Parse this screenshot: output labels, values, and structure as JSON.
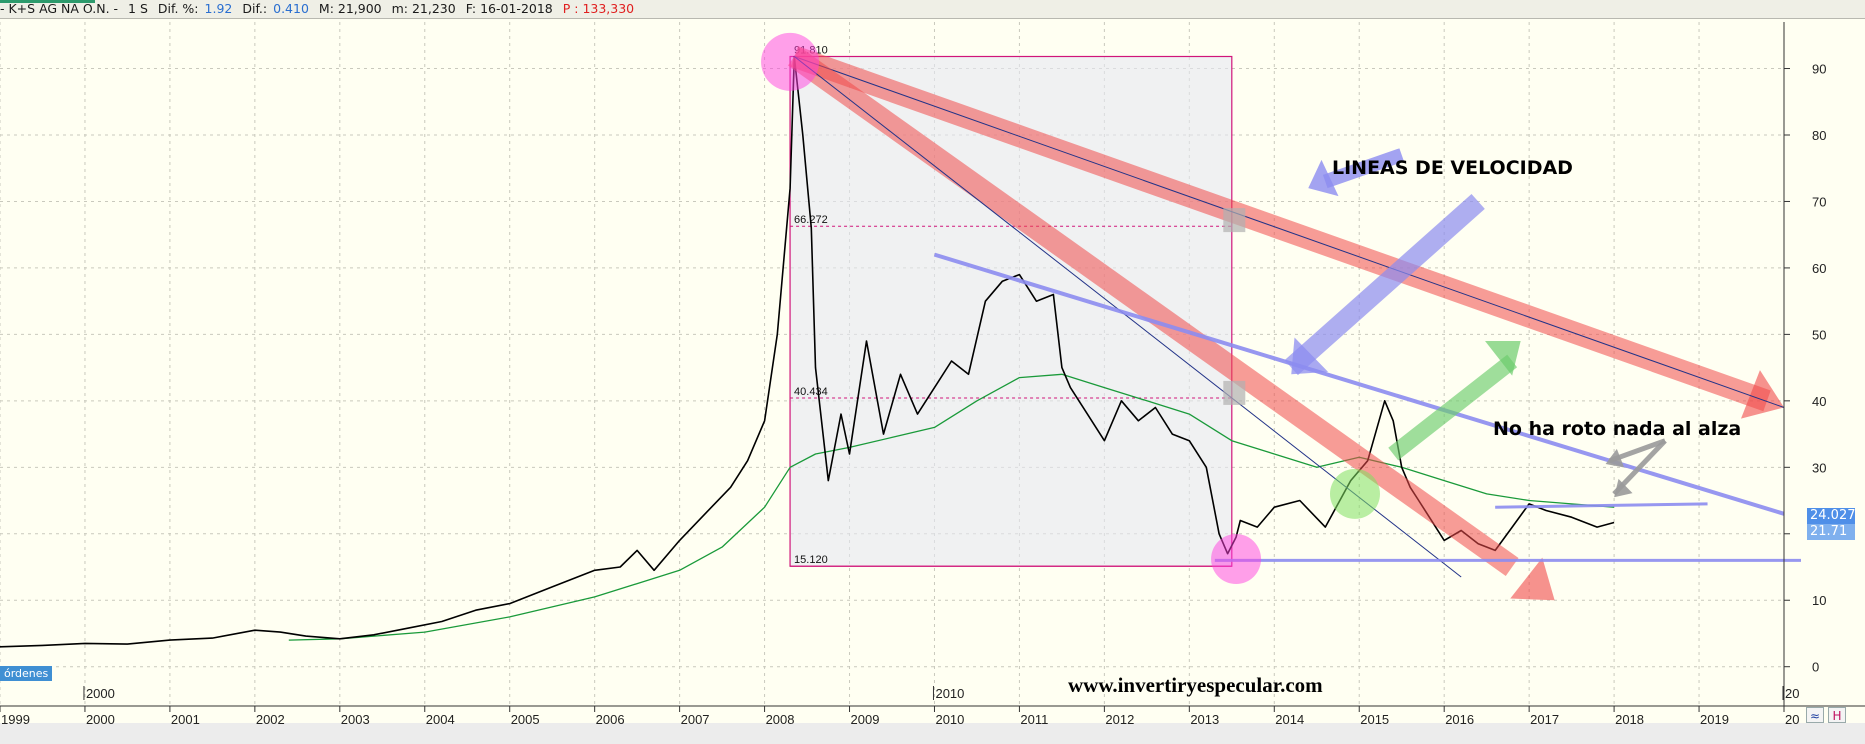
{
  "header": {
    "ticker": "- K+S AG NA O.N. -",
    "period": "1 S",
    "dif_pct_label": "Dif. %:",
    "dif_pct": "1.92",
    "dif_label": "Dif.:",
    "dif": "0.410",
    "max_label": "M: 21,900",
    "min_label": "m: 21,230",
    "date_label": "F: 16-01-2018",
    "p_label": "P : 133,330"
  },
  "volume_tag": "órdenes",
  "site": "www.invertiryespecular.com",
  "annotations": {
    "speed": "LINEAS DE VELOCIDAD",
    "no_break": "No ha roto nada al alza"
  },
  "price_labels": {
    "current": "24.027",
    "ma": "21.71"
  },
  "buttons": {
    "zoom": "≈",
    "ruler": "H"
  },
  "fib_labels": {
    "high": "91.810",
    "r1": "66.272",
    "r2": "40.434",
    "low": "15.120"
  },
  "colors": {
    "price": "#000000",
    "ma": "#1a9a3a",
    "fib": "#d0157a",
    "red_band": "#f04a4a",
    "blue_band": "#8c8cf0",
    "green_arrow": "#6ccc6c",
    "grid": "#c9c9bd",
    "current_bg": "#4f8fe8"
  },
  "chart_data": {
    "type": "line",
    "title": "",
    "xlabel": "",
    "ylabel": "",
    "x_ticks": [
      "1999",
      "2000",
      "2001",
      "2002",
      "2003",
      "2004",
      "2005",
      "2006",
      "2007",
      "2008",
      "2009",
      "2010",
      "2011",
      "2012",
      "2013",
      "2014",
      "2015",
      "2016",
      "2017",
      "2018",
      "2019",
      "20"
    ],
    "x_upper_ticks": [
      "2000",
      "2010",
      "20"
    ],
    "y_ticks": [
      0,
      10,
      20,
      30,
      40,
      50,
      60,
      70,
      80,
      90
    ],
    "ylim": [
      -2,
      97
    ],
    "xlim": [
      1999.0,
      2020.0
    ],
    "grid": true,
    "series": [
      {
        "x": [
          1999.0,
          1999.5,
          2000.0,
          2000.5,
          2001.0,
          2001.5,
          2002.0,
          2002.3,
          2002.6,
          2003.0,
          2003.4,
          2003.8,
          2004.2,
          2004.6,
          2005.0,
          2005.5,
          2006.0,
          2006.3,
          2006.5,
          2006.7,
          2007.0,
          2007.3,
          2007.6,
          2007.8,
          2008.0,
          2008.15,
          2008.3,
          2008.35,
          2008.45,
          2008.55,
          2008.6,
          2008.75,
          2008.9,
          2009.0,
          2009.2,
          2009.4,
          2009.6,
          2009.8,
          2010.0,
          2010.2,
          2010.4,
          2010.6,
          2010.8,
          2011.0,
          2011.2,
          2011.4,
          2011.5,
          2011.6,
          2011.8,
          2012.0,
          2012.2,
          2012.4,
          2012.6,
          2012.8,
          2013.0,
          2013.2,
          2013.35,
          2013.45,
          2013.55,
          2013.6,
          2013.8,
          2014.0,
          2014.3,
          2014.6,
          2014.9,
          2015.1,
          2015.3,
          2015.4,
          2015.5,
          2015.6,
          2015.7,
          2015.8,
          2016.0,
          2016.2,
          2016.4,
          2016.6,
          2016.8,
          2017.0,
          2017.2,
          2017.5,
          2017.8,
          2018.0
        ],
        "y": [
          3.0,
          3.2,
          3.5,
          3.4,
          4.0,
          4.3,
          5.5,
          5.2,
          4.6,
          4.2,
          4.8,
          5.8,
          6.8,
          8.5,
          9.5,
          12.0,
          14.5,
          15.0,
          17.5,
          14.5,
          19.0,
          23.0,
          27.0,
          31.0,
          37.0,
          50.0,
          72.0,
          91.8,
          80.0,
          66.0,
          45.0,
          28.0,
          38.0,
          32.0,
          49.0,
          35.0,
          44.0,
          38.0,
          42.0,
          46.0,
          44.0,
          55.0,
          58.0,
          59.0,
          55.0,
          56.0,
          45.0,
          42.0,
          38.0,
          34.0,
          40.0,
          37.0,
          39.0,
          35.0,
          34.0,
          30.0,
          20.0,
          17.0,
          19.5,
          22.0,
          21.0,
          24.0,
          25.0,
          21.0,
          28.0,
          31.0,
          40.0,
          37.0,
          30.0,
          27.0,
          25.0,
          23.0,
          19.0,
          20.5,
          18.5,
          17.5,
          21.0,
          24.5,
          23.5,
          22.5,
          21.0,
          21.7
        ]
      },
      {
        "x": [
          2002.4,
          2003.0,
          2004.0,
          2005.0,
          2006.0,
          2007.0,
          2007.5,
          2008.0,
          2008.3,
          2008.6,
          2009.0,
          2009.5,
          2010.0,
          2010.5,
          2011.0,
          2011.5,
          2012.0,
          2012.5,
          2013.0,
          2013.5,
          2014.0,
          2014.5,
          2015.0,
          2015.5,
          2016.0,
          2016.5,
          2017.0,
          2017.5,
          2018.0
        ],
        "y": [
          4.0,
          4.2,
          5.2,
          7.5,
          10.5,
          14.5,
          18.0,
          24.0,
          30.0,
          32.0,
          33.0,
          34.5,
          36.0,
          40.0,
          43.5,
          44.0,
          42.0,
          40.0,
          38.0,
          34.0,
          32.0,
          30.0,
          31.5,
          30.0,
          28.0,
          26.0,
          25.0,
          24.5,
          24.0
        ]
      }
    ]
  }
}
